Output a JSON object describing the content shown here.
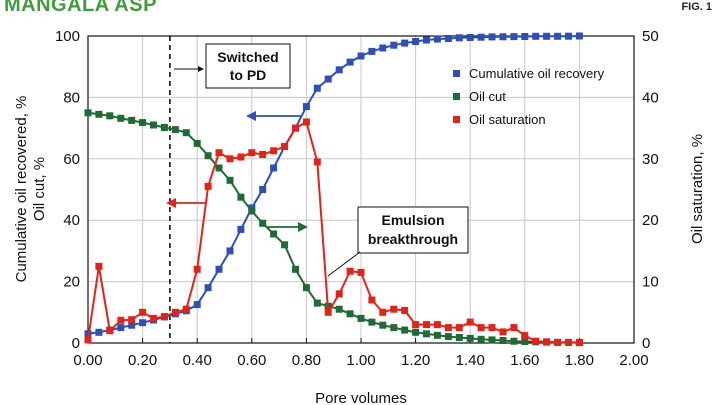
{
  "header": {
    "title": "MANGALA ASP",
    "figure_label": "FIG. 1"
  },
  "chart_data": {
    "type": "line",
    "xlabel": "Pore volumes",
    "ylabel_left": [
      "Cumulative oil recovered, %",
      "Oil cut, %"
    ],
    "ylabel_right": "Oil saturation, %",
    "xlim": [
      0,
      2.0
    ],
    "ylim_left": [
      0,
      100
    ],
    "ylim_right": [
      0,
      50
    ],
    "x_ticks": [
      "0.00",
      "0.20",
      "0.40",
      "0.60",
      "0.80",
      "1.00",
      "1.20",
      "1.40",
      "1.60",
      "1.80",
      "2.00"
    ],
    "y_ticks_left": [
      "0",
      "20",
      "40",
      "60",
      "80",
      "100"
    ],
    "y_ticks_right": [
      "0",
      "10",
      "20",
      "30",
      "40",
      "50"
    ],
    "grid": true,
    "legend_position": "top-right",
    "series": [
      {
        "name": "Cumulative oil recovery",
        "color": "#2f4fb5",
        "axis": "left",
        "x": [
          0.0,
          0.04,
          0.08,
          0.12,
          0.16,
          0.2,
          0.24,
          0.28,
          0.32,
          0.36,
          0.4,
          0.44,
          0.48,
          0.52,
          0.56,
          0.6,
          0.64,
          0.68,
          0.72,
          0.76,
          0.8,
          0.84,
          0.88,
          0.92,
          0.96,
          1.0,
          1.04,
          1.08,
          1.12,
          1.16,
          1.2,
          1.24,
          1.28,
          1.32,
          1.36,
          1.4,
          1.44,
          1.48,
          1.52,
          1.56,
          1.6,
          1.64,
          1.68,
          1.72,
          1.76,
          1.8
        ],
        "y": [
          3,
          3.5,
          4.2,
          5,
          5.8,
          6.6,
          7.5,
          8.5,
          9.5,
          10.5,
          12.5,
          18,
          24,
          30,
          37,
          44,
          50,
          57,
          64,
          70,
          77,
          83,
          86,
          89,
          91.5,
          93.5,
          95,
          96.1,
          97,
          97.7,
          98.2,
          98.7,
          99,
          99.2,
          99.4,
          99.5,
          99.6,
          99.7,
          99.75,
          99.8,
          99.85,
          99.9,
          99.9,
          99.9,
          99.95,
          100
        ]
      },
      {
        "name": "Oil cut",
        "color": "#1f6b35",
        "axis": "left",
        "x": [
          0.0,
          0.04,
          0.08,
          0.12,
          0.16,
          0.2,
          0.24,
          0.28,
          0.32,
          0.36,
          0.4,
          0.44,
          0.48,
          0.52,
          0.56,
          0.6,
          0.64,
          0.68,
          0.72,
          0.76,
          0.8,
          0.84,
          0.88,
          0.92,
          0.96,
          1.0,
          1.04,
          1.08,
          1.12,
          1.16,
          1.2,
          1.24,
          1.28,
          1.32,
          1.36,
          1.4,
          1.44,
          1.48,
          1.52,
          1.56,
          1.6,
          1.64,
          1.68,
          1.72,
          1.76,
          1.8
        ],
        "y": [
          75,
          74.5,
          74,
          73.2,
          72.5,
          71.8,
          71,
          70.2,
          69.5,
          68.5,
          65,
          61,
          57,
          53,
          47.5,
          43,
          39,
          35.5,
          32,
          24,
          18,
          13,
          12,
          11,
          9.5,
          8,
          6.8,
          5.8,
          5,
          4.2,
          3.5,
          3,
          2.5,
          2.1,
          1.8,
          1.5,
          1.2,
          1,
          0.8,
          0.6,
          0.5,
          0.4,
          0.3,
          0.2,
          0.2,
          0.1
        ]
      },
      {
        "name": "Oil saturation",
        "color": "#e2231a",
        "axis": "right",
        "x": [
          0.0,
          0.04,
          0.08,
          0.12,
          0.16,
          0.2,
          0.24,
          0.28,
          0.32,
          0.36,
          0.4,
          0.44,
          0.48,
          0.52,
          0.56,
          0.6,
          0.64,
          0.68,
          0.72,
          0.76,
          0.8,
          0.84,
          0.88,
          0.92,
          0.96,
          1.0,
          1.04,
          1.08,
          1.12,
          1.16,
          1.2,
          1.24,
          1.28,
          1.32,
          1.36,
          1.4,
          1.44,
          1.48,
          1.52,
          1.56,
          1.6,
          1.64,
          1.68,
          1.72,
          1.76,
          1.8
        ],
        "y": [
          0.5,
          12.5,
          2,
          3.7,
          3.8,
          5,
          4,
          4.3,
          5,
          5.5,
          12,
          25.5,
          31,
          30,
          30.3,
          31,
          30.7,
          31.3,
          32,
          35,
          36,
          29.5,
          5,
          8,
          11.7,
          11.5,
          7,
          5,
          5.5,
          5.3,
          3,
          3,
          3,
          2.5,
          2.5,
          3.4,
          2.5,
          2.5,
          1.8,
          2.5,
          1.2,
          0.3,
          0.2,
          0.1,
          0.1,
          0.1
        ]
      }
    ],
    "annotations": {
      "switched_line1": "Switched",
      "switched_line2": "to PD",
      "switched_x": 0.3,
      "emulsion_line1": "Emulsion",
      "emulsion_line2": "breakthrough"
    }
  }
}
